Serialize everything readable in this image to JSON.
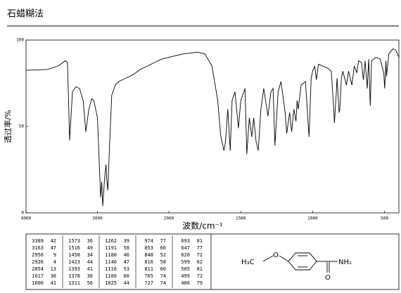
{
  "chart_data": {
    "type": "line",
    "title": "石蜡糊法",
    "xlabel": "波数/cm⁻¹",
    "ylabel": "透过率/%",
    "xlim": [
      4000,
      400
    ],
    "x_scale_break": 2000,
    "xticks": [
      4000,
      3000,
      2000,
      1500,
      1000,
      500
    ],
    "ylim": [
      0,
      100
    ],
    "yticks": [
      0,
      50,
      100
    ],
    "grid": false,
    "color": "#000000",
    "x": [
      4000,
      3700,
      3550,
      3450,
      3420,
      3389,
      3350,
      3300,
      3250,
      3200,
      3163,
      3120,
      3080,
      3050,
      3000,
      2980,
      2956,
      2940,
      2926,
      2900,
      2880,
      2870,
      2854,
      2830,
      2800,
      2750,
      2700,
      2600,
      2500,
      2400,
      2300,
      2200,
      2100,
      2000,
      1900,
      1800,
      1750,
      1700,
      1660,
      1640,
      1617,
      1606,
      1590,
      1573,
      1560,
      1540,
      1516,
      1500,
      1470,
      1458,
      1440,
      1423,
      1410,
      1393,
      1378,
      1360,
      1340,
      1311,
      1290,
      1275,
      1262,
      1240,
      1220,
      1191,
      1180,
      1160,
      1146,
      1130,
      1116,
      1108,
      1100,
      1080,
      1050,
      1025,
      1010,
      1000,
      985,
      974,
      960,
      930,
      900,
      870,
      853,
      848,
      835,
      830,
      816,
      811,
      800,
      790,
      765,
      750,
      727,
      710,
      693,
      680,
      660,
      647,
      635,
      620,
      610,
      599,
      590,
      560,
      530,
      505,
      499,
      490,
      486,
      470,
      440,
      420,
      400
    ],
    "values": [
      82.5,
      83,
      85,
      88,
      87,
      42,
      70,
      73,
      72,
      65,
      47,
      60,
      66,
      65,
      55,
      35,
      9,
      18,
      4,
      20,
      28,
      20,
      13,
      40,
      68,
      74,
      76,
      78,
      80,
      83,
      85,
      87,
      89,
      90,
      92,
      93,
      92,
      85,
      65,
      45,
      36,
      41,
      60,
      36,
      65,
      70,
      49,
      65,
      72,
      34,
      55,
      44,
      55,
      41,
      36,
      60,
      72,
      56,
      70,
      72,
      39,
      70,
      76,
      58,
      46,
      58,
      47,
      60,
      53,
      65,
      60,
      74,
      76,
      44,
      78,
      82,
      85,
      77,
      86,
      85,
      84,
      82,
      60,
      52,
      70,
      78,
      58,
      60,
      78,
      82,
      74,
      82,
      74,
      85,
      81,
      88,
      87,
      77,
      88,
      72,
      89,
      62,
      88,
      90,
      89,
      81,
      72,
      88,
      79,
      92,
      95,
      94,
      90
    ]
  },
  "peak_table": [
    [
      [
        "3389",
        "42"
      ],
      [
        "3163",
        "47"
      ],
      [
        "2956",
        "9"
      ],
      [
        "2926",
        "4"
      ],
      [
        "2854",
        "13"
      ],
      [
        "1617",
        "36"
      ],
      [
        "1606",
        "41"
      ]
    ],
    [
      [
        "1573",
        "36"
      ],
      [
        "1516",
        "49"
      ],
      [
        "1458",
        "34"
      ],
      [
        "1423",
        "44"
      ],
      [
        "1393",
        "41"
      ],
      [
        "1378",
        "36"
      ],
      [
        "1311",
        "56"
      ]
    ],
    [
      [
        "1262",
        "39"
      ],
      [
        "1191",
        "58"
      ],
      [
        "1180",
        "46"
      ],
      [
        "1146",
        "47"
      ],
      [
        "1116",
        "53"
      ],
      [
        "1100",
        "60"
      ],
      [
        "1025",
        "44"
      ]
    ],
    [
      [
        "974",
        "77"
      ],
      [
        "853",
        "60"
      ],
      [
        "848",
        "52"
      ],
      [
        "816",
        "58"
      ],
      [
        "811",
        "60"
      ],
      [
        "765",
        "74"
      ],
      [
        "727",
        "74"
      ]
    ],
    [
      [
        "693",
        "81"
      ],
      [
        "647",
        "77"
      ],
      [
        "620",
        "72"
      ],
      [
        "599",
        "62"
      ],
      [
        "505",
        "81"
      ],
      [
        "499",
        "72"
      ],
      [
        "486",
        "79"
      ]
    ]
  ],
  "structure": {
    "methyl": "H₃C",
    "ether_o": "O",
    "carbonyl_o": "O",
    "amide": "NH₂"
  }
}
